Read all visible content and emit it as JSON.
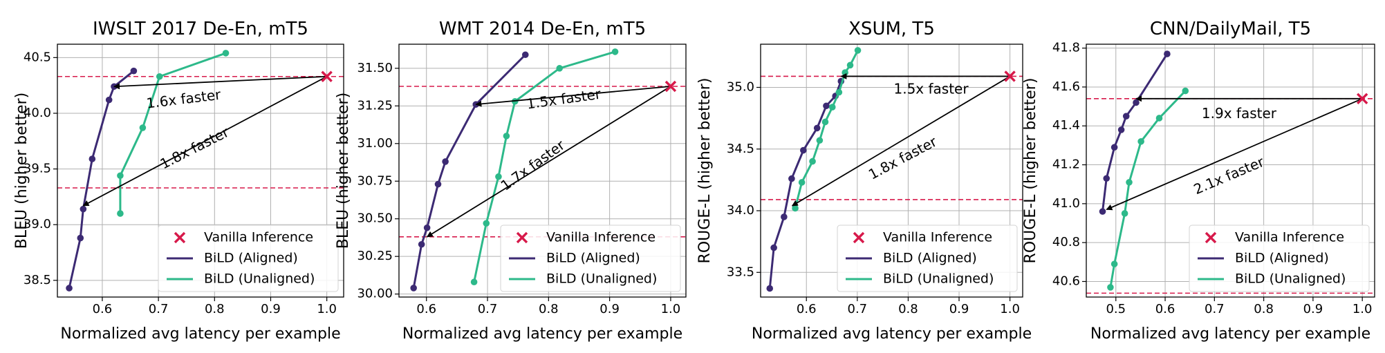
{
  "chart_data": [
    {
      "type": "line",
      "title": "IWSLT 2017 De-En, mT5",
      "xlabel": "Normalized avg latency per example",
      "ylabel": "BLEU (higher better)",
      "xlim": [
        0.52,
        1.03
      ],
      "ylim": [
        38.35,
        40.62
      ],
      "xticks": [
        0.6,
        0.7,
        0.8,
        0.9,
        1.0
      ],
      "xtick_labels": [
        "0.6",
        "0.7",
        "0.8",
        "0.9",
        "1.0"
      ],
      "yticks": [
        38.5,
        39.0,
        39.5,
        40.0,
        40.5
      ],
      "ytick_labels": [
        "38.5",
        "39.0",
        "39.5",
        "40.0",
        "40.5"
      ],
      "grid": true,
      "legend_position": "lower-right",
      "vanilla": {
        "name": "Vanilla Inference",
        "x": 1.0,
        "y": 40.33,
        "color": "#d7194a"
      },
      "hlines": [
        40.33,
        39.33
      ],
      "series": [
        {
          "name": "BiLD (Aligned)",
          "color": "#3c2a73",
          "x": [
            0.541,
            0.561,
            0.566,
            0.582,
            0.612,
            0.621,
            0.656
          ],
          "y": [
            38.43,
            38.88,
            39.14,
            39.59,
            40.12,
            40.24,
            40.38
          ]
        },
        {
          "name": "BiLD (Unaligned)",
          "color": "#2db98a",
          "x": [
            0.632,
            0.632,
            0.672,
            0.702,
            0.82
          ],
          "y": [
            39.1,
            39.44,
            39.87,
            40.33,
            40.54
          ]
        }
      ],
      "annotations": [
        {
          "text": "1.6x faster",
          "from": [
            1.0,
            40.33
          ],
          "to": [
            0.621,
            40.24
          ],
          "label_at": [
            0.745,
            40.12
          ],
          "angle": -7
        },
        {
          "text": "1.8x faster",
          "from": [
            1.0,
            40.33
          ],
          "to": [
            0.566,
            39.17
          ],
          "label_at": [
            0.765,
            39.68
          ],
          "angle": -27
        }
      ]
    },
    {
      "type": "line",
      "title": "WMT 2014 De-En, mT5",
      "xlabel": "Normalized avg latency per example",
      "ylabel": "BLEU (higher better)",
      "xlim": [
        0.555,
        1.025
      ],
      "ylim": [
        29.98,
        31.66
      ],
      "xticks": [
        0.6,
        0.7,
        0.8,
        0.9,
        1.0
      ],
      "xtick_labels": [
        "0.6",
        "0.7",
        "0.8",
        "0.9",
        "1.0"
      ],
      "yticks": [
        30.0,
        30.25,
        30.5,
        30.75,
        31.0,
        31.25,
        31.5
      ],
      "ytick_labels": [
        "30.00",
        "30.25",
        "30.50",
        "30.75",
        "31.00",
        "31.25",
        "31.50"
      ],
      "grid": true,
      "legend_position": "lower-right",
      "vanilla": {
        "name": "Vanilla Inference",
        "x": 1.0,
        "y": 31.38,
        "color": "#d7194a"
      },
      "hlines": [
        31.38,
        30.38
      ],
      "series": [
        {
          "name": "BiLD (Aligned)",
          "color": "#3c2a73",
          "x": [
            0.579,
            0.592,
            0.601,
            0.619,
            0.631,
            0.681,
            0.762
          ],
          "y": [
            30.04,
            30.33,
            30.44,
            30.73,
            30.88,
            31.26,
            31.59
          ]
        },
        {
          "name": "BiLD (Unaligned)",
          "color": "#2db98a",
          "x": [
            0.678,
            0.698,
            0.718,
            0.731,
            0.745,
            0.818,
            0.909
          ],
          "y": [
            30.08,
            30.47,
            30.78,
            31.05,
            31.28,
            31.5,
            31.61
          ]
        }
      ],
      "annotations": [
        {
          "text": "1.5x faster",
          "from": [
            1.0,
            31.38
          ],
          "to": [
            0.681,
            31.26
          ],
          "label_at": [
            0.825,
            31.29
          ],
          "angle": -8
        },
        {
          "text": "1.7x faster",
          "from": [
            1.0,
            31.38
          ],
          "to": [
            0.601,
            30.38
          ],
          "label_at": [
            0.775,
            30.85
          ],
          "angle": -36
        }
      ]
    },
    {
      "type": "line",
      "title": "XSUM, T5",
      "xlabel": "Normalized avg latency per example",
      "ylabel": "ROUGE-L (higher better)",
      "xlim": [
        0.51,
        1.025
      ],
      "ylim": [
        33.3,
        35.35
      ],
      "xticks": [
        0.6,
        0.7,
        0.8,
        0.9,
        1.0
      ],
      "xtick_labels": [
        "0.6",
        "0.7",
        "0.8",
        "0.9",
        "1.0"
      ],
      "yticks": [
        33.5,
        34.0,
        34.5,
        35.0
      ],
      "ytick_labels": [
        "33.5",
        "34.0",
        "34.5",
        "35.0"
      ],
      "grid": true,
      "legend_position": "lower-right",
      "vanilla": {
        "name": "Vanilla Inference",
        "x": 1.0,
        "y": 35.09,
        "color": "#d7194a"
      },
      "hlines": [
        35.09,
        34.09
      ],
      "series": [
        {
          "name": "BiLD (Aligned)",
          "color": "#3c2a73",
          "x": [
            0.528,
            0.536,
            0.556,
            0.571,
            0.594,
            0.621,
            0.639,
            0.657,
            0.668
          ],
          "y": [
            33.37,
            33.7,
            33.95,
            34.26,
            34.49,
            34.67,
            34.85,
            34.93,
            35.05
          ]
        },
        {
          "name": "BiLD (Unaligned)",
          "color": "#2db98a",
          "x": [
            0.578,
            0.591,
            0.612,
            0.626,
            0.637,
            0.651,
            0.664,
            0.676,
            0.686,
            0.701
          ],
          "y": [
            34.02,
            34.23,
            34.4,
            34.57,
            34.72,
            34.84,
            34.96,
            35.12,
            35.18,
            35.3
          ]
        }
      ],
      "annotations": [
        {
          "text": "1.5x faster",
          "from": [
            1.0,
            35.09
          ],
          "to": [
            0.668,
            35.09
          ],
          "label_at": [
            0.845,
            34.98
          ],
          "angle": 0
        },
        {
          "text": "1.8x faster",
          "from": [
            1.0,
            35.09
          ],
          "to": [
            0.572,
            34.04
          ],
          "label_at": [
            0.79,
            34.42
          ],
          "angle": -28
        }
      ]
    },
    {
      "type": "line",
      "title": "CNN/DailyMail, T5",
      "xlabel": "Normalized avg latency per example",
      "ylabel": "ROUGE-L (higher better)",
      "xlim": [
        0.44,
        1.025
      ],
      "ylim": [
        40.52,
        41.82
      ],
      "xticks": [
        0.5,
        0.6,
        0.7,
        0.8,
        0.9,
        1.0
      ],
      "xtick_labels": [
        "0.5",
        "0.6",
        "0.7",
        "0.8",
        "0.9",
        "1.0"
      ],
      "yticks": [
        40.6,
        40.8,
        41.0,
        41.2,
        41.4,
        41.6,
        41.8
      ],
      "ytick_labels": [
        "40.6",
        "40.8",
        "41.0",
        "41.2",
        "41.4",
        "41.6",
        "41.8"
      ],
      "grid": true,
      "legend_position": "lower-right",
      "vanilla": {
        "name": "Vanilla Inference",
        "x": 1.0,
        "y": 41.54,
        "color": "#d7194a"
      },
      "hlines": [
        41.54,
        40.54
      ],
      "series": [
        {
          "name": "BiLD (Aligned)",
          "color": "#3c2a73",
          "x": [
            0.473,
            0.481,
            0.497,
            0.511,
            0.521,
            0.541,
            0.604
          ],
          "y": [
            40.96,
            41.13,
            41.29,
            41.38,
            41.45,
            41.52,
            41.77
          ]
        },
        {
          "name": "BiLD (Unaligned)",
          "color": "#2db98a",
          "x": [
            0.489,
            0.497,
            0.518,
            0.527,
            0.551,
            0.588,
            0.641
          ],
          "y": [
            40.57,
            40.69,
            40.95,
            41.11,
            41.32,
            41.44,
            41.58
          ]
        }
      ],
      "annotations": [
        {
          "text": "1.9x faster",
          "from": [
            1.0,
            41.54
          ],
          "to": [
            0.541,
            41.54
          ],
          "label_at": [
            0.75,
            41.46
          ],
          "angle": 0
        },
        {
          "text": "2.1x faster",
          "from": [
            1.0,
            41.54
          ],
          "to": [
            0.481,
            40.97
          ],
          "label_at": [
            0.73,
            41.14
          ],
          "angle": -23
        }
      ]
    }
  ]
}
